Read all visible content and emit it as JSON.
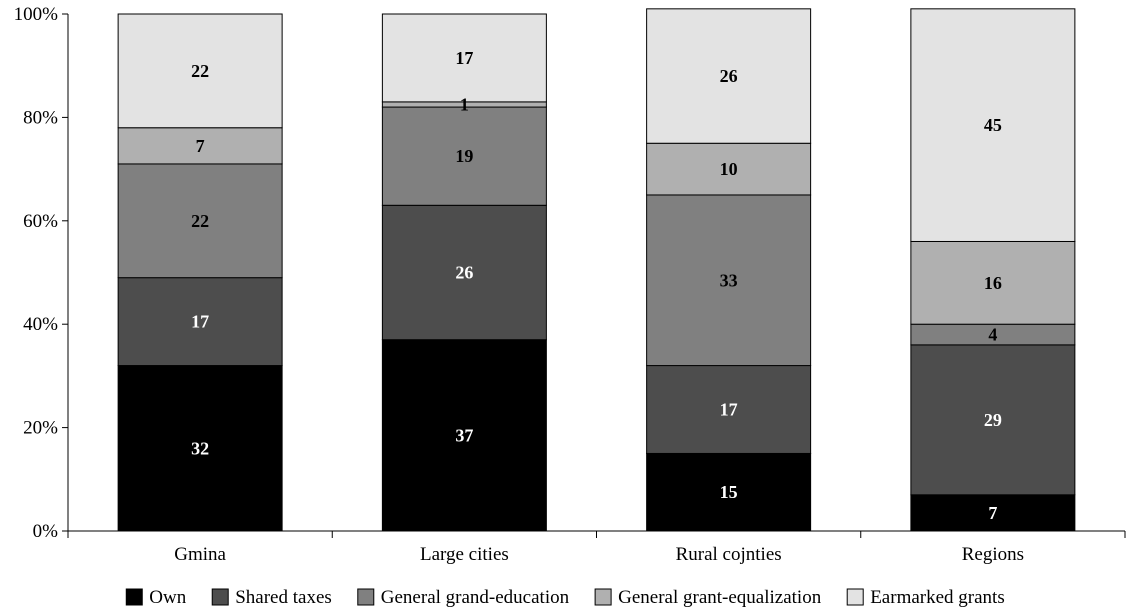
{
  "chart_data": {
    "type": "bar",
    "stacked": true,
    "percent": true,
    "categories": [
      "Gmina",
      "Large cities",
      "Rural cojnties",
      "Regions"
    ],
    "series": [
      {
        "name": "Own",
        "color": "#000000",
        "label_color": "#ffffff",
        "values": [
          32,
          37,
          15,
          7
        ]
      },
      {
        "name": "Shared taxes",
        "color": "#4d4d4d",
        "label_color": "#ffffff",
        "values": [
          17,
          26,
          17,
          29
        ]
      },
      {
        "name": "General grand-education",
        "color": "#808080",
        "label_color": "#000000",
        "values": [
          22,
          19,
          33,
          4
        ]
      },
      {
        "name": "General grant-equalization",
        "color": "#b0b0b0",
        "label_color": "#000000",
        "values": [
          7,
          1,
          10,
          16
        ]
      },
      {
        "name": "Earmarked grants",
        "color": "#e3e3e3",
        "label_color": "#000000",
        "values": [
          22,
          17,
          26,
          45
        ]
      }
    ],
    "y_ticks": [
      "0%",
      "20%",
      "40%",
      "60%",
      "80%",
      "100%"
    ],
    "ylim": [
      0,
      100
    ],
    "grid": false,
    "legend_position": "bottom"
  }
}
